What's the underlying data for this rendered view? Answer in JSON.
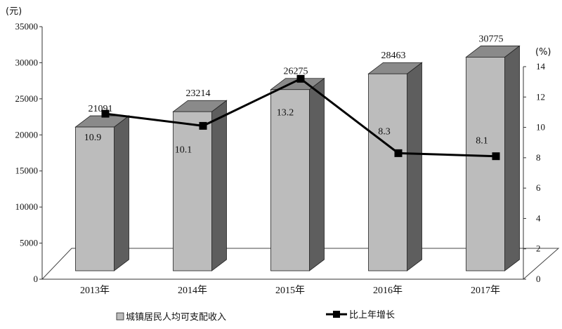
{
  "chart_data": {
    "type": "bar",
    "categories": [
      "2013年",
      "2014年",
      "2015年",
      "2016年",
      "2017年"
    ],
    "series": [
      {
        "name": "城镇居民人均可支配收入",
        "type": "bar",
        "axis": "left",
        "values": [
          21091,
          23214,
          26275,
          28463,
          30775
        ]
      },
      {
        "name": "比上年增长",
        "type": "line",
        "axis": "right",
        "values": [
          10.9,
          10.1,
          13.2,
          8.3,
          8.1
        ]
      }
    ],
    "bar_labels": [
      "21091",
      "23214",
      "26275",
      "28463",
      "30775"
    ],
    "line_labels": [
      "10.9",
      "10.1",
      "13.2",
      "8.3",
      "8.1"
    ],
    "ylabel": "(元)",
    "y2label": "(%)",
    "ylim": [
      0,
      35000
    ],
    "y2lim": [
      0,
      14
    ],
    "yticks": [
      0,
      5000,
      10000,
      15000,
      20000,
      25000,
      30000,
      35000
    ],
    "y2ticks": [
      0,
      2,
      4,
      6,
      8,
      10,
      12,
      14
    ],
    "grid": false,
    "legend_position": "bottom",
    "colors": {
      "bar_front": "#bcbcbc",
      "bar_side": "#5e5e5e",
      "bar_top": "#8a8a8a",
      "line": "#000000",
      "axis": "#333333"
    }
  }
}
